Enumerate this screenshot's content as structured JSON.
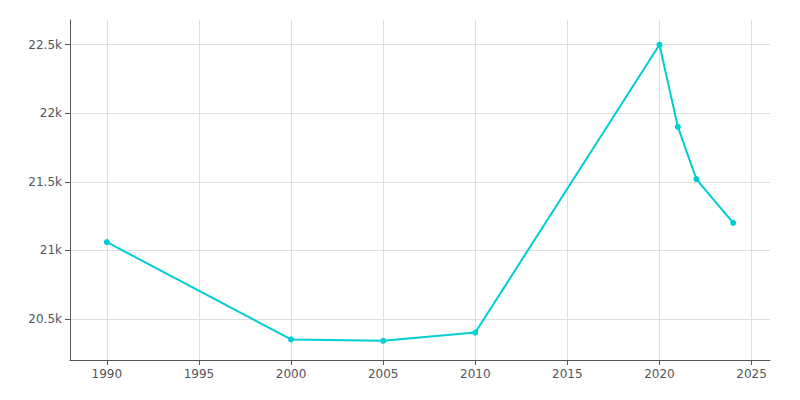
{
  "chart_data": {
    "type": "line",
    "x": [
      1990,
      2000,
      2005,
      2010,
      2020,
      2021,
      2022,
      2024
    ],
    "values": [
      21060,
      20350,
      20340,
      20400,
      22500,
      21900,
      21520,
      21200
    ],
    "color": "#00CED1",
    "marker": "circle",
    "xlim": [
      1988,
      2026
    ],
    "ylim": [
      20200,
      22680
    ],
    "xticks": [
      1990,
      1995,
      2000,
      2005,
      2010,
      2015,
      2020,
      2025
    ],
    "yticks": [
      {
        "value": 20500,
        "label": "20.5k"
      },
      {
        "value": 21000,
        "label": "21k"
      },
      {
        "value": 21500,
        "label": "21.5k"
      },
      {
        "value": 22000,
        "label": "22k"
      },
      {
        "value": 22500,
        "label": "22.5k"
      }
    ],
    "grid": true
  }
}
